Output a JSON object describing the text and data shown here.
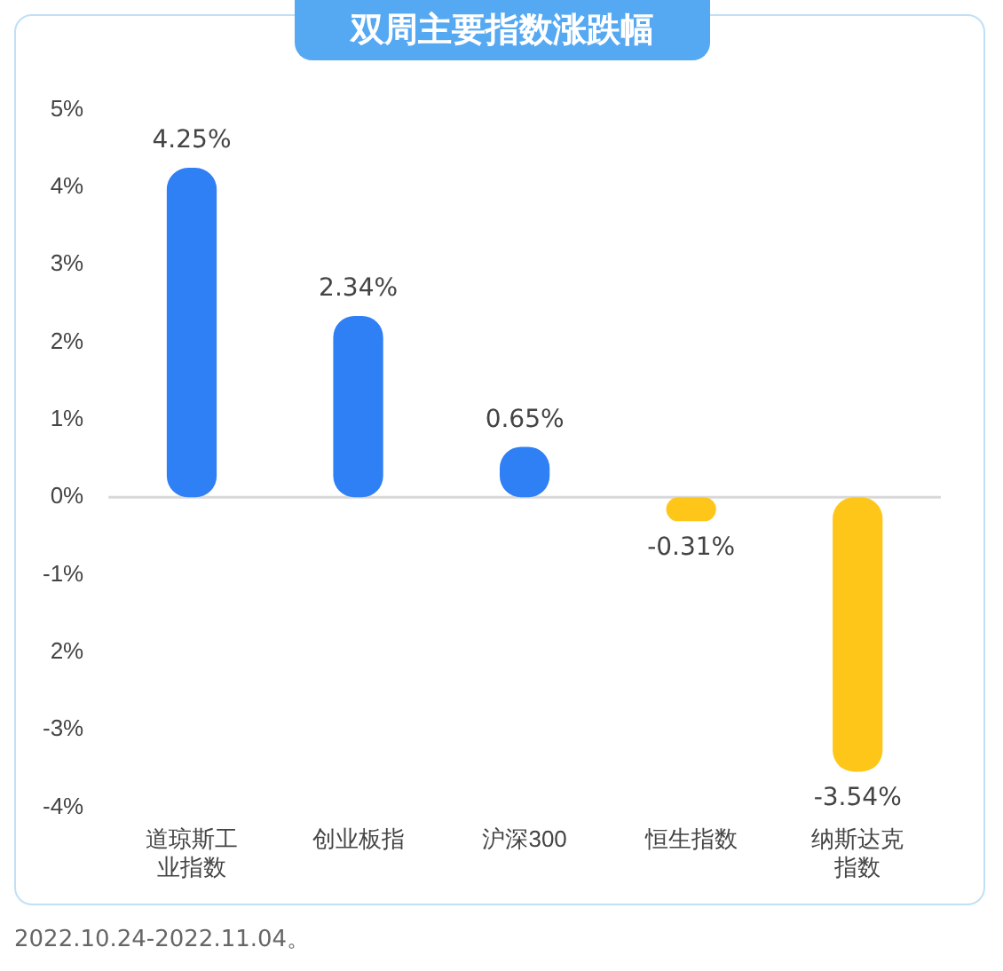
{
  "chart_data": {
    "type": "bar",
    "title": "双周主要指数涨跌幅",
    "categories": [
      "道琼斯工业指数",
      "创业板指",
      "沪深300",
      "恒生指数",
      "纳斯达克指数"
    ],
    "values": [
      4.25,
      2.34,
      0.65,
      -0.31,
      -3.54
    ],
    "value_labels": [
      "4.25%",
      "2.34%",
      "0.65%",
      "-0.31%",
      "-3.54%"
    ],
    "colors": [
      "#2f7ff5",
      "#2f7ff5",
      "#2f7ff5",
      "#ffc61a",
      "#ffc61a"
    ],
    "ylim": [
      -4,
      5
    ],
    "yticks": [
      {
        "value": -4,
        "label": "-4%"
      },
      {
        "value": -3,
        "label": "-3%"
      },
      {
        "value": -2,
        "label": "2%"
      },
      {
        "value": -1,
        "label": "-1%"
      },
      {
        "value": 0,
        "label": "0%"
      },
      {
        "value": 1,
        "label": "1%"
      },
      {
        "value": 2,
        "label": "2%"
      },
      {
        "value": 3,
        "label": "3%"
      },
      {
        "value": 4,
        "label": "4%"
      },
      {
        "value": 5,
        "label": "5%"
      }
    ],
    "ref_lines": [
      {
        "axis": "y",
        "value": 0,
        "color": "#d8d8d8"
      }
    ],
    "legend": false,
    "annotations": [
      "2022.10.24-2022.11.04。"
    ]
  }
}
